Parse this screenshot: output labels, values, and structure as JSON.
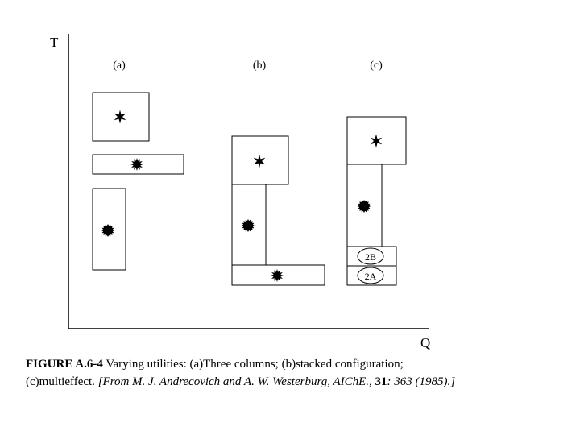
{
  "axes": {
    "y_label": "T",
    "x_label": "Q"
  },
  "panels": [
    {
      "label": "(a)"
    },
    {
      "label": "(b)"
    },
    {
      "label": "(c)",
      "boxes": [
        "2B",
        "2A"
      ]
    }
  ],
  "caption": {
    "figure": "FIGURE A.6-4",
    "text": " Varying utilities: (a)Three columns; (b)stacked configuration;",
    "text2": "(c)multieffect. ",
    "source": "[From M. J. Andrecovich and A. W. Westerburg, AIChE., ",
    "volume": "31",
    "pages": ": 363 (1985).]"
  }
}
